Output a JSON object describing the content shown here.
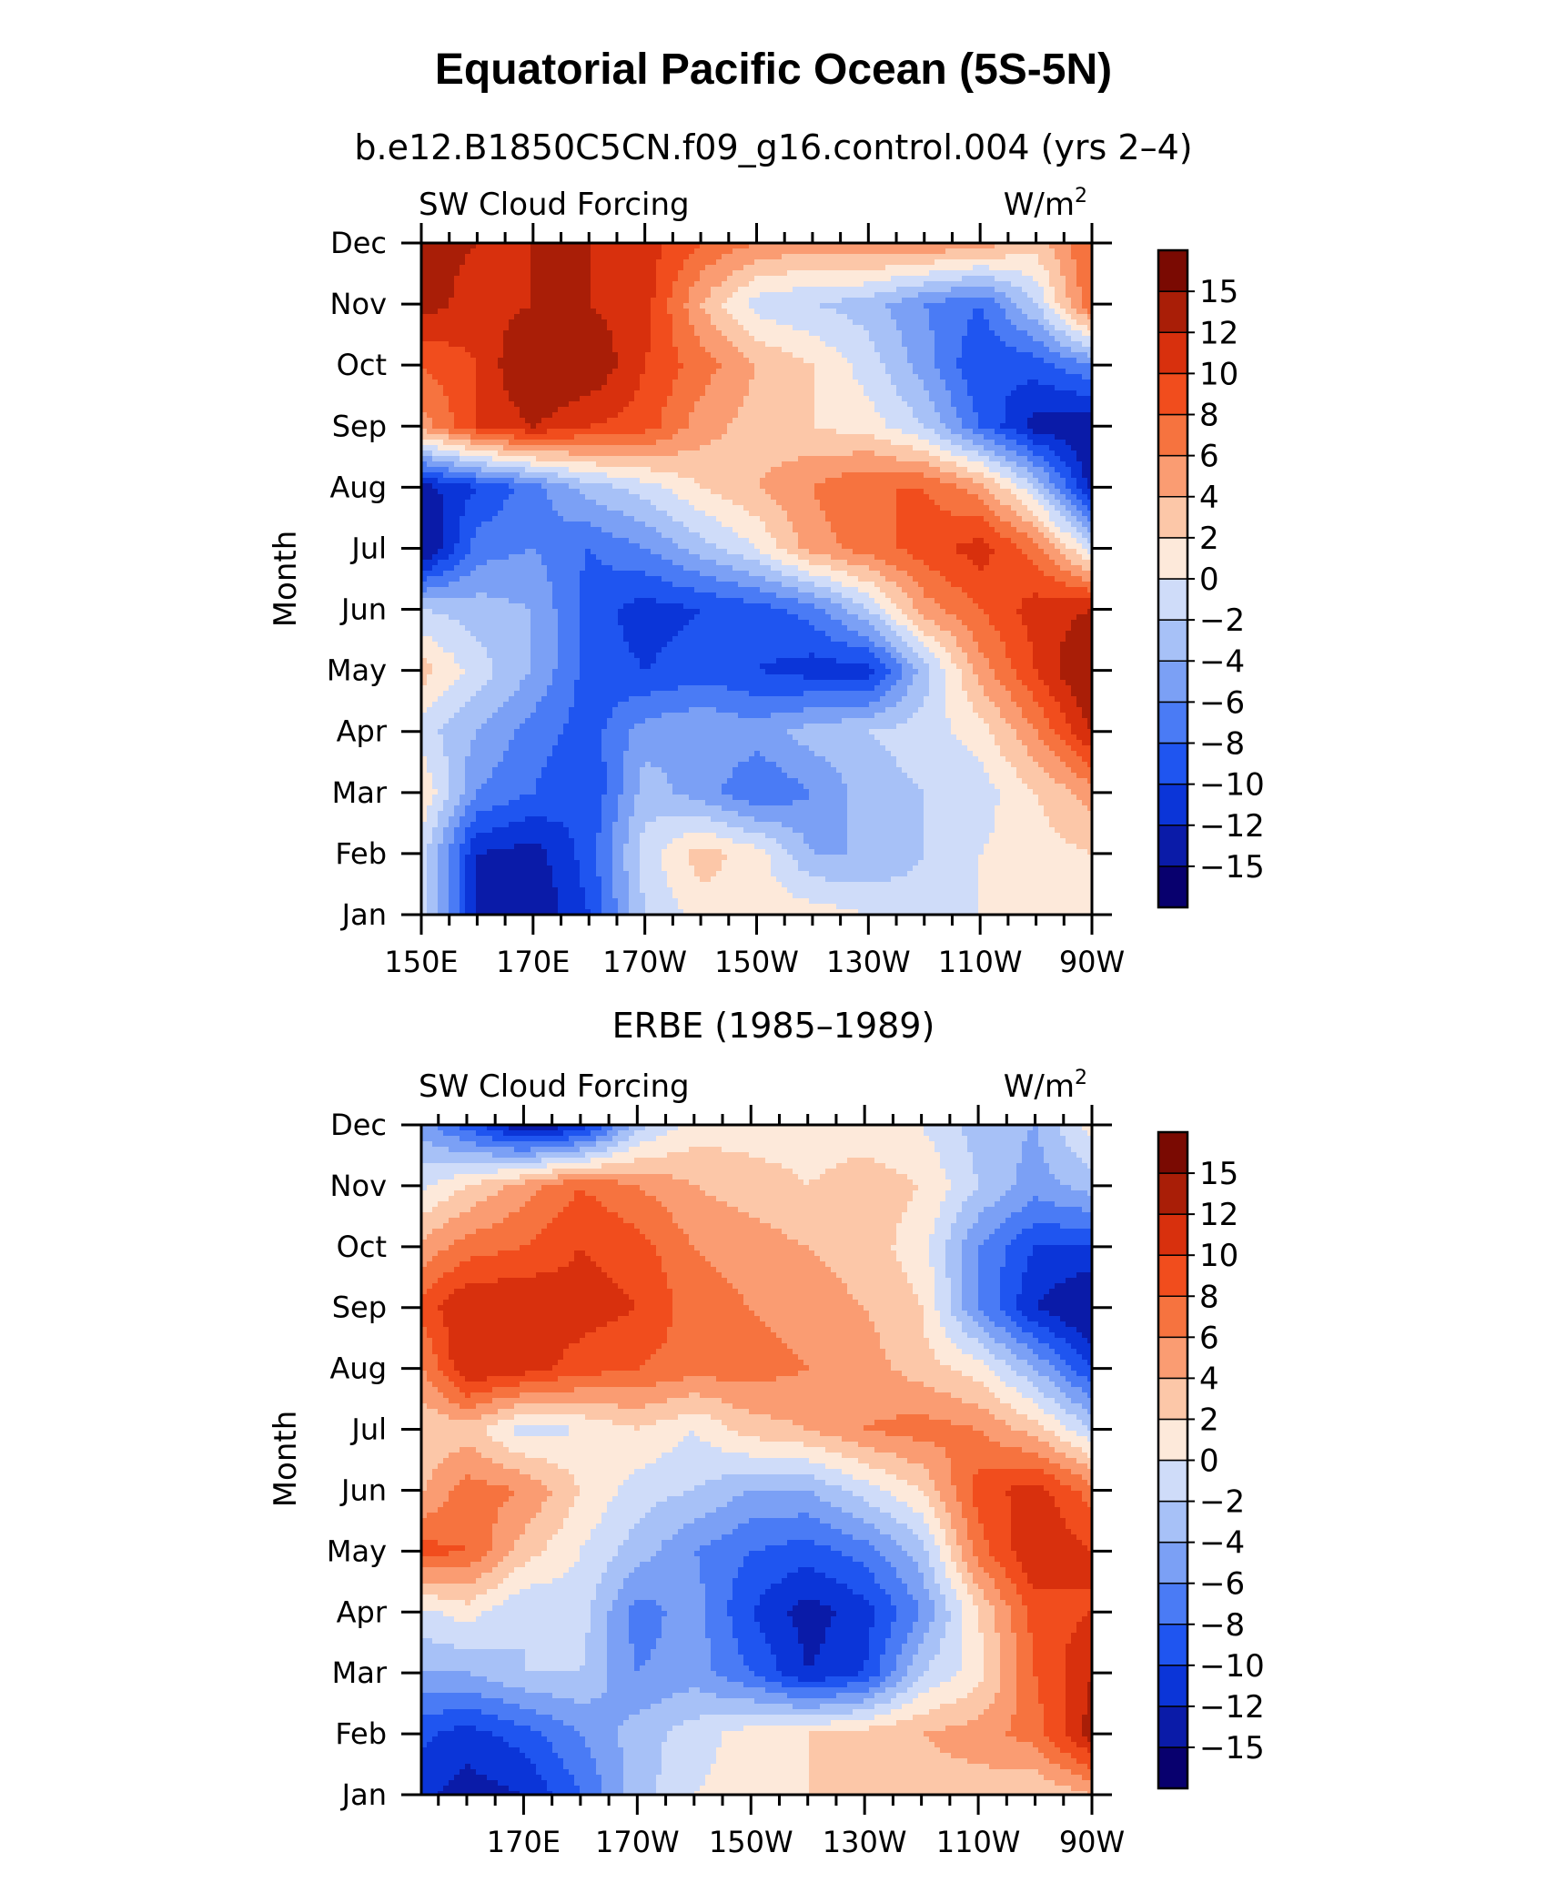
{
  "title": "Equatorial Pacific Ocean (5S-5N)",
  "colors": [
    "#08006e",
    "#0a1ba8",
    "#0b35d8",
    "#1f55f0",
    "#4a7bf5",
    "#7ba0f5",
    "#a7c1f7",
    "#cfdcf9",
    "#fde9da",
    "#fcc7a8",
    "#fa9c72",
    "#f6733f",
    "#f14d1d",
    "#d8300d",
    "#a91e07",
    "#7a0a02"
  ],
  "chart_data": [
    {
      "type": "heatmap",
      "subtitle": "b.e12.B1850C5CN.f09_g16.control.004 (yrs 2–4)",
      "label_left": "SW Cloud Forcing",
      "label_right": "W/m",
      "label_right_sup": "2",
      "ylabel": "Month",
      "xlabel": "",
      "x_tick_labels": [
        "150E",
        "170E",
        "170W",
        "150W",
        "130W",
        "110W",
        "90W"
      ],
      "x_tick_positions": [
        150,
        170,
        190,
        210,
        230,
        250,
        270
      ],
      "y_tick_labels": [
        "Jan",
        "Feb",
        "Mar",
        "Apr",
        "May",
        "Jun",
        "Jul",
        "Aug",
        "Sep",
        "Oct",
        "Nov",
        "Dec"
      ],
      "xlim": [
        150,
        270
      ],
      "ylim": [
        0,
        11
      ],
      "colorbar_labels": [
        "-15",
        "-12",
        "-10",
        "-8",
        "-6",
        "-4",
        "-2",
        "0",
        "2",
        "4",
        "6",
        "8",
        "10",
        "12",
        "15"
      ],
      "colorbar_levels": [
        -15,
        -12,
        -10,
        -8,
        -6,
        -4,
        -2,
        0,
        2,
        4,
        6,
        8,
        10,
        12,
        15
      ],
      "x": [
        150,
        160,
        170,
        180,
        190,
        200,
        210,
        220,
        230,
        240,
        250,
        260,
        270
      ],
      "y": [
        "Jan",
        "Feb",
        "Mar",
        "Apr",
        "May",
        "Jun",
        "Jul",
        "Aug",
        "Sep",
        "Oct",
        "Nov",
        "Dec"
      ],
      "z": [
        [
          -1,
          -12,
          -14,
          -10,
          -2,
          1,
          1,
          1,
          0,
          -1,
          0,
          1,
          2
        ],
        [
          -1,
          -12,
          -13,
          -9,
          -1,
          3,
          1,
          -4,
          -4,
          -2,
          0,
          1,
          2
        ],
        [
          2,
          -6,
          -8,
          -10,
          -3,
          -5,
          -8,
          -6,
          -3,
          -2,
          -1,
          2,
          5
        ],
        [
          -1,
          -4,
          -7,
          -9,
          -5,
          -4,
          -5,
          -3,
          -2,
          -1,
          1,
          6,
          12
        ],
        [
          3,
          -1,
          -4,
          -9,
          -10,
          -9,
          -10,
          -11,
          -11,
          -3,
          5,
          10,
          15
        ],
        [
          -2,
          -3,
          -4,
          -9,
          -11,
          -10,
          -9,
          -7,
          -2,
          5,
          8,
          11,
          12
        ],
        [
          -15,
          -7,
          -6,
          -8,
          -6,
          -3,
          0,
          5,
          7,
          9,
          11,
          7,
          -1
        ],
        [
          -13,
          -10,
          -7,
          -3,
          -1,
          2,
          4,
          6,
          8,
          8,
          5,
          -2,
          -13
        ],
        [
          5,
          10,
          12,
          10,
          9,
          5,
          3,
          2,
          1,
          -2,
          -8,
          -13,
          -14
        ],
        [
          8,
          10,
          15,
          14,
          10,
          7,
          4,
          2,
          -1,
          -5,
          -10,
          -9,
          -6
        ],
        [
          13,
          11,
          12,
          12,
          11,
          4,
          -1,
          -2,
          -3,
          -6,
          -8,
          -2,
          8
        ],
        [
          13,
          12,
          12,
          12,
          11,
          8,
          6,
          5,
          6,
          6,
          5,
          3,
          8
        ]
      ]
    },
    {
      "type": "heatmap",
      "subtitle": "ERBE (1985–1989)",
      "label_left": "SW Cloud Forcing",
      "label_right": "W/m",
      "label_right_sup": "2",
      "ylabel": "Month",
      "xlabel": "",
      "x_tick_labels": [
        "170E",
        "170W",
        "150W",
        "130W",
        "110W",
        "90W"
      ],
      "x_tick_positions": [
        170,
        190,
        210,
        230,
        250,
        270
      ],
      "y_tick_labels": [
        "Jan",
        "Feb",
        "Mar",
        "Apr",
        "May",
        "Jun",
        "Jul",
        "Aug",
        "Sep",
        "Oct",
        "Nov",
        "Dec"
      ],
      "xlim": [
        152,
        270
      ],
      "ylim": [
        0,
        11
      ],
      "colorbar_labels": [
        "-15",
        "-12",
        "-10",
        "-8",
        "-6",
        "-4",
        "-2",
        "0",
        "2",
        "4",
        "6",
        "8",
        "10",
        "12",
        "15"
      ],
      "colorbar_levels": [
        -15,
        -12,
        -10,
        -8,
        -6,
        -4,
        -2,
        0,
        2,
        4,
        6,
        8,
        10,
        12,
        15
      ],
      "x": [
        150,
        160,
        170,
        180,
        190,
        200,
        210,
        220,
        230,
        240,
        250,
        260,
        270
      ],
      "y": [
        "Jan",
        "Feb",
        "Mar",
        "Apr",
        "May",
        "Jun",
        "Jul",
        "Aug",
        "Sep",
        "Oct",
        "Nov",
        "Dec"
      ],
      "z": [
        [
          -11,
          -13,
          -12,
          -8,
          -3,
          0,
          1,
          2,
          2,
          3,
          3,
          2,
          4
        ],
        [
          -9,
          -11,
          -9,
          -6,
          -3,
          -1,
          1,
          2,
          3,
          4,
          5,
          7,
          13
        ],
        [
          -4,
          -4,
          -2,
          -2,
          -6,
          -5,
          -8,
          -12,
          -10,
          -2,
          1,
          8,
          12
        ],
        [
          -1,
          1,
          -2,
          -1,
          -7,
          -5,
          -10,
          -13,
          -11,
          -6,
          2,
          9,
          10
        ],
        [
          9,
          8,
          3,
          0,
          -3,
          -6,
          -8,
          -9,
          -7,
          -3,
          7,
          12,
          10
        ],
        [
          3,
          7,
          6,
          2,
          -1,
          -2,
          -4,
          -4,
          -1,
          2,
          9,
          11,
          7
        ],
        [
          2,
          3,
          -1,
          0,
          2,
          0,
          3,
          4,
          6,
          7,
          6,
          3,
          -2
        ],
        [
          4,
          12,
          11,
          9,
          8,
          7,
          7,
          6,
          5,
          3,
          1,
          -4,
          -10
        ],
        [
          8,
          12,
          12,
          11,
          10,
          7,
          6,
          5,
          4,
          2,
          -6,
          -12,
          -15
        ],
        [
          4,
          7,
          8,
          10,
          9,
          6,
          5,
          4,
          3,
          1,
          -6,
          -10,
          -10
        ],
        [
          -1,
          2,
          5,
          8,
          6,
          4,
          3,
          2,
          3,
          2,
          -2,
          -5,
          -3
        ],
        [
          -4,
          -9,
          -14,
          -12,
          -3,
          1,
          1,
          1,
          1,
          0,
          -3,
          -4,
          1
        ]
      ]
    }
  ]
}
